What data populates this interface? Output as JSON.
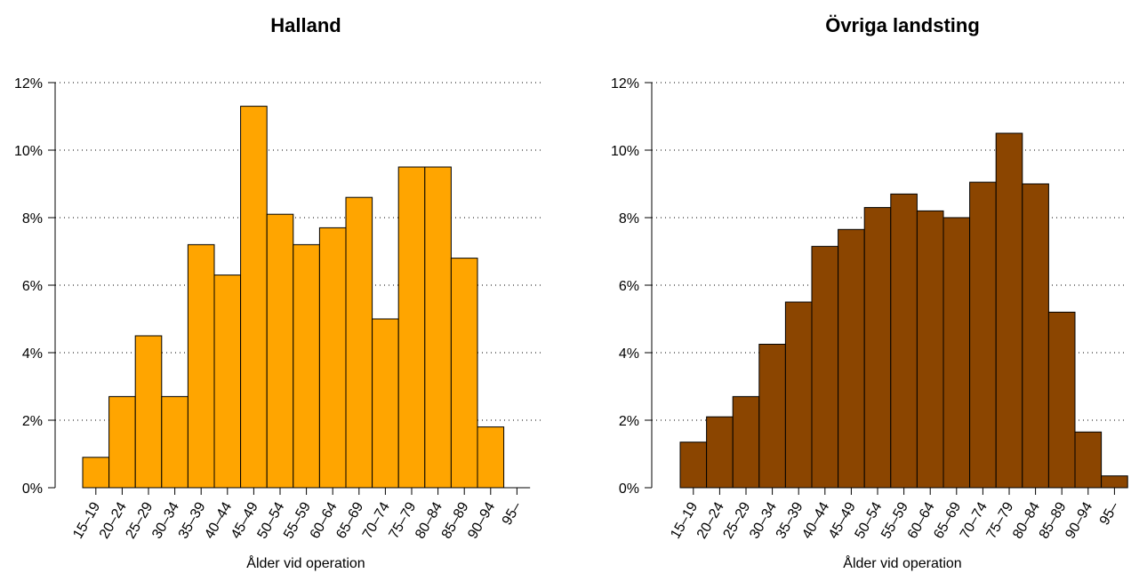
{
  "chart_data": [
    {
      "type": "bar",
      "title": "Halland",
      "xlabel": "Ålder vid operation",
      "ylabel": "",
      "ylim": [
        0,
        12
      ],
      "y_ticks": [
        "0%",
        "2%",
        "4%",
        "6%",
        "8%",
        "10%",
        "12%"
      ],
      "grid": "horizontal dotted",
      "color": "#FFA500",
      "categories": [
        "15–19",
        "20–24",
        "25–29",
        "30–34",
        "35–39",
        "40–44",
        "45–49",
        "50–54",
        "55–59",
        "60–64",
        "65–69",
        "70–74",
        "75–79",
        "80–84",
        "85–89",
        "90–94",
        "95–"
      ],
      "values": [
        0.9,
        2.7,
        4.5,
        2.7,
        7.2,
        6.3,
        11.3,
        8.1,
        7.2,
        7.7,
        8.6,
        5.0,
        9.5,
        9.5,
        6.8,
        1.8,
        0.0
      ]
    },
    {
      "type": "bar",
      "title": "Övriga landsting",
      "xlabel": "Ålder vid operation",
      "ylabel": "",
      "ylim": [
        0,
        12
      ],
      "y_ticks": [
        "0%",
        "2%",
        "4%",
        "6%",
        "8%",
        "10%",
        "12%"
      ],
      "grid": "horizontal dotted",
      "color": "#8B4500",
      "categories": [
        "15–19",
        "20–24",
        "25–29",
        "30–34",
        "35–39",
        "40–44",
        "45–49",
        "50–54",
        "55–59",
        "60–64",
        "65–69",
        "70–74",
        "75–79",
        "80–84",
        "85–89",
        "90–94",
        "95–"
      ],
      "values": [
        1.35,
        2.1,
        2.7,
        4.25,
        5.5,
        7.15,
        7.65,
        8.3,
        8.7,
        8.2,
        8.0,
        9.05,
        10.5,
        9.0,
        5.2,
        1.65,
        0.35
      ]
    }
  ]
}
